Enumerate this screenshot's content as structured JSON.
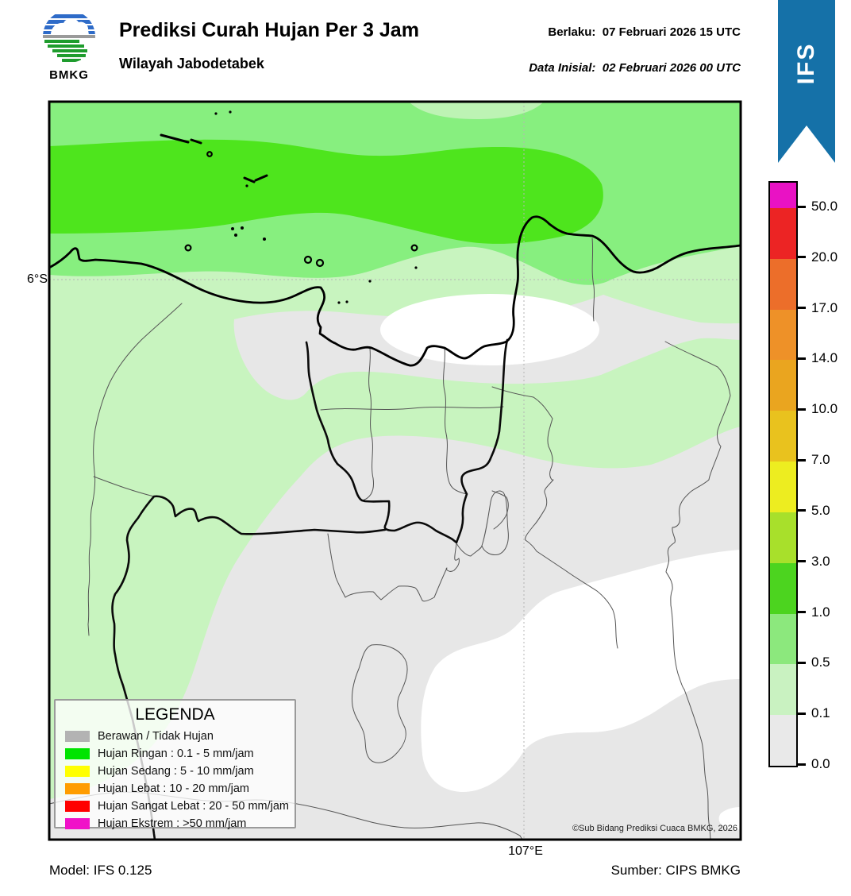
{
  "header": {
    "title": "Prediksi Curah Hujan Per 3 Jam",
    "subtitle": "Wilayah Jabodetabek",
    "berlaku_label": "Berlaku:",
    "berlaku_value": "07 Februari 2026 15 UTC",
    "inisial_label": "Data Inisial:",
    "inisial_value": "02 Februari 2026 00 UTC",
    "logo_caption": "BMKG",
    "model_ribbon": "IFS",
    "ribbon_color": "#1571a8"
  },
  "map": {
    "lat_label": "6°S",
    "lon_label": "107°E",
    "copyright": "©Sub Bidang Prediksi Cuaca BMKG, 2026",
    "fill_colors": {
      "cloudy_gray": "#e7e7e7",
      "drizzle_pale_green": "#c8f4bf",
      "light_rain_green": "#87ef7f",
      "rain_band_bright_green": "#4ee51d",
      "no_rain_white": "#ffffff"
    }
  },
  "legend": {
    "title": "LEGENDA",
    "items": [
      {
        "color": "#b3b3b3",
        "label": "Berawan / Tidak Hujan"
      },
      {
        "color": "#00e400",
        "label": "Hujan Ringan : 0.1 - 5 mm/jam"
      },
      {
        "color": "#ffff00",
        "label": "Hujan Sedang : 5 - 10 mm/jam"
      },
      {
        "color": "#ff9d00",
        "label": "Hujan Lebat : 10 - 20 mm/jam"
      },
      {
        "color": "#ff0000",
        "label": "Hujan Sangat Lebat : 20 - 50 mm/jam"
      },
      {
        "color": "#f012c8",
        "label": "Hujan Ekstrem : >50 mm/jam"
      }
    ]
  },
  "colorbar": {
    "tick_labels": [
      "50.0",
      "20.0",
      "17.0",
      "14.0",
      "10.0",
      "7.0",
      "5.0",
      "3.0",
      "1.0",
      "0.5",
      "0.1",
      "0.0"
    ],
    "segment_colors_top_to_bottom": [
      "#e912c4",
      "#ec2424",
      "#ec6e2a",
      "#ee9128",
      "#eaa51f",
      "#e9c21e",
      "#eded20",
      "#a8e02b",
      "#4cd41f",
      "#8ce87d",
      "#c9f2c1",
      "#e9e9e9"
    ]
  },
  "footer": {
    "model": "Model: IFS 0.125",
    "source": "Sumber: CIPS BMKG"
  }
}
